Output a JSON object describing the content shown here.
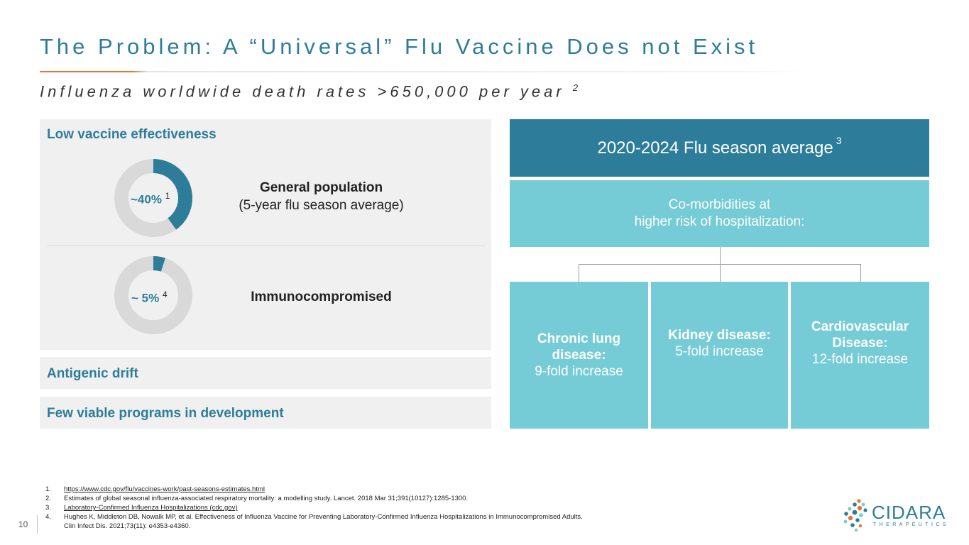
{
  "slide": {
    "title": "The Problem: A “Universal” Flu Vaccine Does not Exist",
    "subtitle": "Influenza worldwide death rates >650,000 per year",
    "subtitle_ref": "2",
    "page_number": "10"
  },
  "left": {
    "heading": "Low vaccine effectiveness",
    "donut_general": {
      "value_label": "~40%",
      "ref": "1",
      "fraction": 0.4
    },
    "general_title": "General population",
    "general_subtitle": "(5-year flu season average)",
    "donut_immuno": {
      "value_label": "~ 5%",
      "ref": "4",
      "fraction": 0.05
    },
    "immuno_title": "Immunocompromised",
    "drift_label": "Antigenic drift",
    "few_label": "Few viable programs in development"
  },
  "right": {
    "season_title": "2020-2024 Flu season average",
    "season_ref": "3",
    "comorb_line1": "Co-morbidities at",
    "comorb_line2": "higher risk of hospitalization:",
    "categories": [
      {
        "name_line1": "Chronic lung",
        "name_line2": "disease:",
        "value": "9-fold increase"
      },
      {
        "name_line1": "Kidney disease:",
        "name_line2": "",
        "value": "5-fold increase"
      },
      {
        "name_line1": "Cardiovascular",
        "name_line2": "Disease:",
        "value": "12-fold increase"
      }
    ]
  },
  "footnotes": [
    {
      "num": "1.",
      "line1": "https://www.cdc.gov/flu/vaccines-work/past-seasons-estimates.html",
      "line2": ""
    },
    {
      "num": "2.",
      "line1": "Estimates of global seasonal influenza-associated respiratory mortality: a modelling study. Lancet. 2018 Mar 31;391(10127):1285-1300.",
      "line2": ""
    },
    {
      "num": "3.",
      "line1": "Laboratory-Confirmed Influenza Hospitalizations (cdc.gov)",
      "line2": ""
    },
    {
      "num": "4.",
      "line1": "Hughes K, Middleton DB, Nowalk MP, et al. Effectiveness of Influenza Vaccine for Preventing Laboratory-Confirmed Influenza Hospitalizations in Immunocompromised Adults.",
      "line2": "Clin Infect Dis. 2021;73(11): e4353-e4360."
    }
  ],
  "logo": {
    "name": "CIDARA",
    "tagline": "THERAPEUTICS"
  },
  "colors": {
    "primary": "#2d7d9a",
    "light": "#76ccd6",
    "accent": "#e8733a",
    "panel": "#f0f0f0",
    "track": "#d9d9d9"
  }
}
